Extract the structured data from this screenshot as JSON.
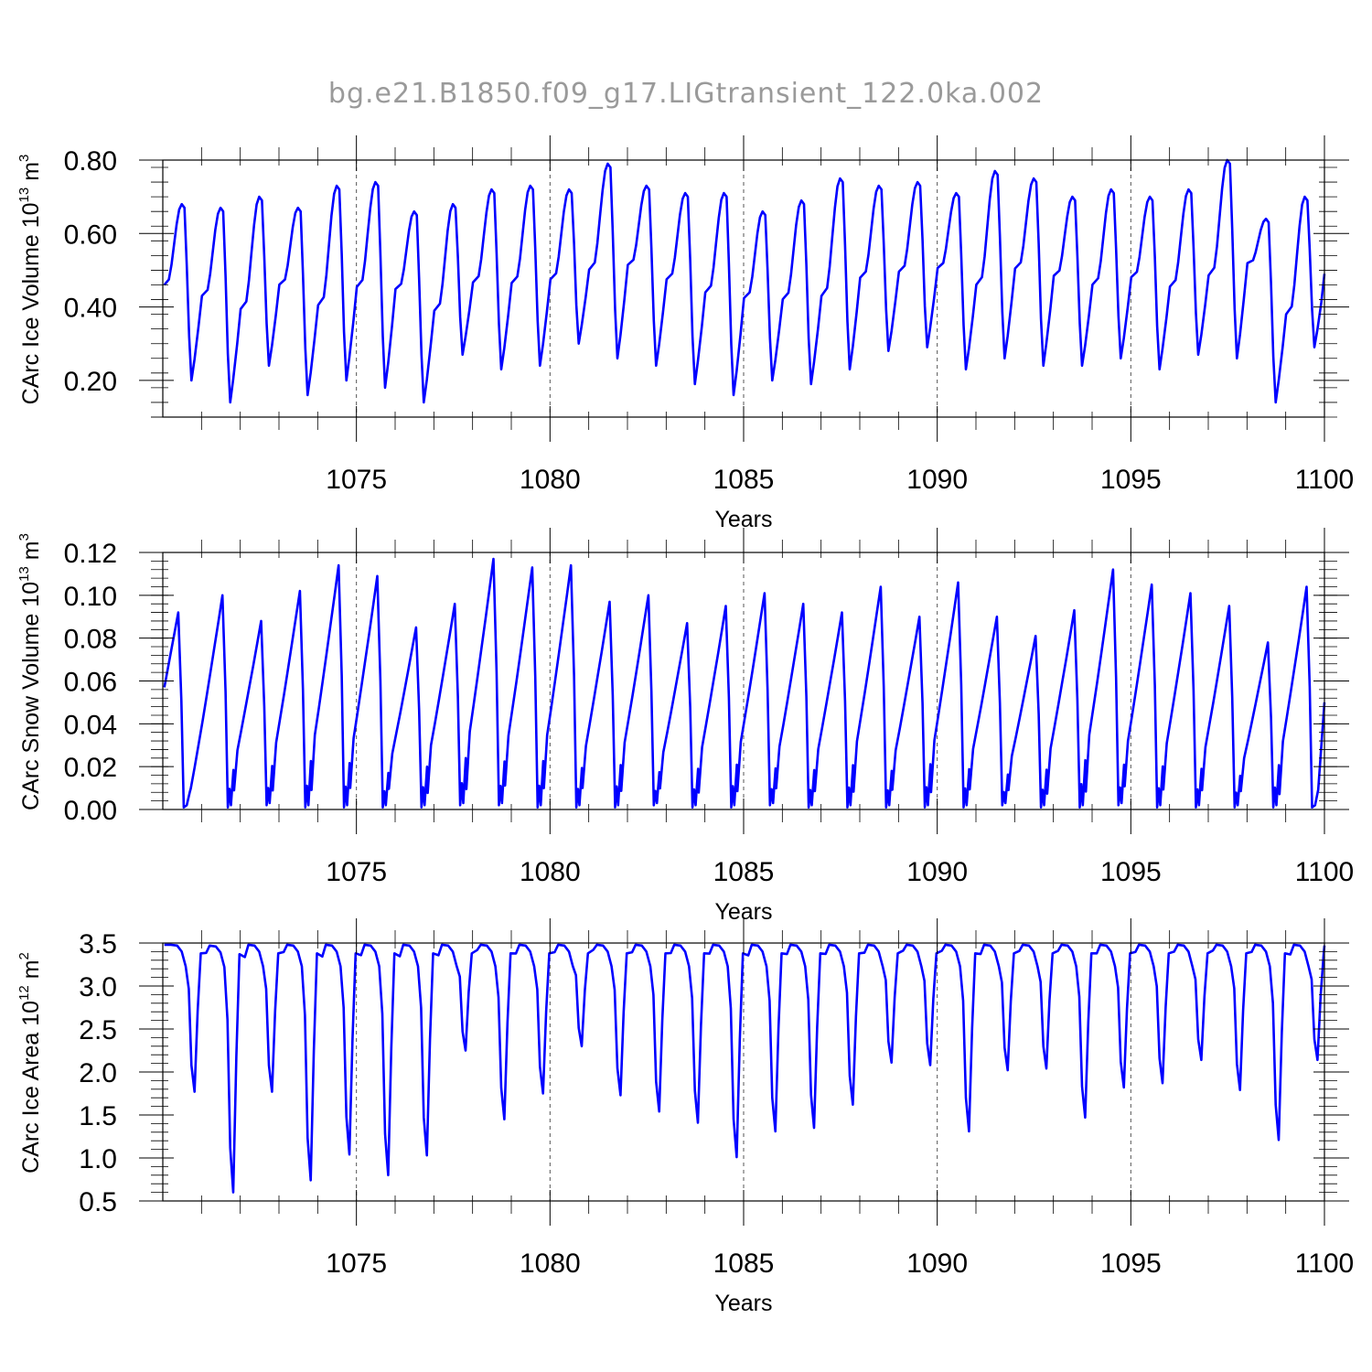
{
  "title": "bg.e21.B1850.f09_g17.LIGtransient_122.0ka.002",
  "colors": {
    "series": "#0000ff",
    "axis": "#000000",
    "title": "#9a9a9a",
    "gridline": "#555555"
  },
  "chart_data": [
    {
      "type": "line",
      "name": "ice-volume",
      "ylabel_main": "CArc Ice Volume 10",
      "ylabel_exp1": "13",
      "ylabel_unit": " m",
      "ylabel_exp2": "3",
      "xlabel": "Years",
      "xlim": [
        1070,
        1100
      ],
      "ylim": [
        0.1,
        0.8
      ],
      "x_ticks": [
        "1075",
        "1080",
        "1085",
        "1090",
        "1095",
        "1100"
      ],
      "x_tick_values": [
        1075,
        1080,
        1085,
        1090,
        1095,
        1100
      ],
      "y_ticks": [
        "0.20",
        "0.40",
        "0.60",
        "0.80"
      ],
      "y_tick_values": [
        0.2,
        0.4,
        0.6,
        0.8
      ],
      "x_start": 1070.04,
      "series_name": "Ice Volume",
      "annual_max": [
        0.68,
        0.67,
        0.7,
        0.67,
        0.73,
        0.74,
        0.66,
        0.68,
        0.72,
        0.73,
        0.72,
        0.79,
        0.73,
        0.71,
        0.71,
        0.66,
        0.69,
        0.75,
        0.73,
        0.74,
        0.71,
        0.77,
        0.75,
        0.7,
        0.72,
        0.7,
        0.72,
        0.8,
        0.64,
        0.7
      ],
      "annual_min": [
        0.2,
        0.14,
        0.24,
        0.16,
        0.2,
        0.18,
        0.14,
        0.27,
        0.23,
        0.24,
        0.3,
        0.26,
        0.24,
        0.19,
        0.16,
        0.2,
        0.19,
        0.23,
        0.28,
        0.29,
        0.23,
        0.26,
        0.24,
        0.24,
        0.26,
        0.23,
        0.27,
        0.26,
        0.14,
        0.29
      ],
      "initial": 0.46,
      "final": 0.49
    },
    {
      "type": "line",
      "name": "snow-volume",
      "ylabel_main": "CArc Snow Volume 10",
      "ylabel_exp1": "13",
      "ylabel_unit": " m",
      "ylabel_exp2": "3",
      "xlabel": "Years",
      "xlim": [
        1070,
        1100
      ],
      "ylim": [
        0.0,
        0.12
      ],
      "x_ticks": [
        "1075",
        "1080",
        "1085",
        "1090",
        "1095",
        "1100"
      ],
      "x_tick_values": [
        1075,
        1080,
        1085,
        1090,
        1095,
        1100
      ],
      "y_ticks": [
        "0.00",
        "0.02",
        "0.04",
        "0.06",
        "0.08",
        "0.10",
        "0.12"
      ],
      "y_tick_values": [
        0.0,
        0.02,
        0.04,
        0.06,
        0.08,
        0.1,
        0.12
      ],
      "x_start": 1070.04,
      "series_name": "Snow Volume",
      "annual_max": [
        0.092,
        0.1,
        0.088,
        0.102,
        0.114,
        0.109,
        0.085,
        0.096,
        0.117,
        0.113,
        0.114,
        0.097,
        0.1,
        0.087,
        0.095,
        0.101,
        0.096,
        0.092,
        0.104,
        0.09,
        0.106,
        0.09,
        0.081,
        0.093,
        0.112,
        0.105,
        0.101,
        0.095,
        0.078,
        0.104
      ],
      "annual_min": [
        0.001,
        0.001,
        0.002,
        0.001,
        0.001,
        0.001,
        0.001,
        0.002,
        0.002,
        0.001,
        0.001,
        0.001,
        0.002,
        0.001,
        0.001,
        0.002,
        0.001,
        0.001,
        0.001,
        0.001,
        0.001,
        0.002,
        0.001,
        0.001,
        0.002,
        0.001,
        0.001,
        0.001,
        0.001,
        0.001
      ],
      "initial": 0.057,
      "final": 0.05
    },
    {
      "type": "line",
      "name": "ice-area",
      "ylabel_main": "CArc Ice Area 10",
      "ylabel_exp1": "12",
      "ylabel_unit": " m",
      "ylabel_exp2": "2",
      "xlabel": "Years",
      "xlim": [
        1070,
        1100
      ],
      "ylim": [
        0.5,
        3.5
      ],
      "x_ticks": [
        "1075",
        "1080",
        "1085",
        "1090",
        "1095",
        "1100"
      ],
      "x_tick_values": [
        1075,
        1080,
        1085,
        1090,
        1095,
        1100
      ],
      "y_ticks": [
        "0.5",
        "1.0",
        "1.5",
        "2.0",
        "2.5",
        "3.0",
        "3.5"
      ],
      "y_tick_values": [
        0.5,
        1.0,
        1.5,
        2.0,
        2.5,
        3.0,
        3.5
      ],
      "x_start": 1070.04,
      "series_name": "Ice Area",
      "annual_max": [
        3.48,
        3.47,
        3.48,
        3.48,
        3.48,
        3.48,
        3.48,
        3.48,
        3.48,
        3.48,
        3.48,
        3.48,
        3.48,
        3.48,
        3.48,
        3.48,
        3.48,
        3.48,
        3.48,
        3.48,
        3.48,
        3.48,
        3.48,
        3.48,
        3.48,
        3.48,
        3.48,
        3.48,
        3.48,
        3.48
      ],
      "annual_min": [
        1.77,
        0.6,
        1.77,
        0.74,
        1.04,
        0.8,
        1.03,
        2.25,
        1.45,
        1.75,
        2.3,
        1.73,
        1.54,
        1.41,
        1.01,
        1.31,
        1.35,
        1.62,
        2.11,
        2.08,
        1.31,
        2.02,
        2.04,
        1.47,
        1.82,
        1.87,
        2.14,
        1.79,
        1.21,
        2.14
      ],
      "initial": 3.48,
      "final": 3.47
    }
  ]
}
